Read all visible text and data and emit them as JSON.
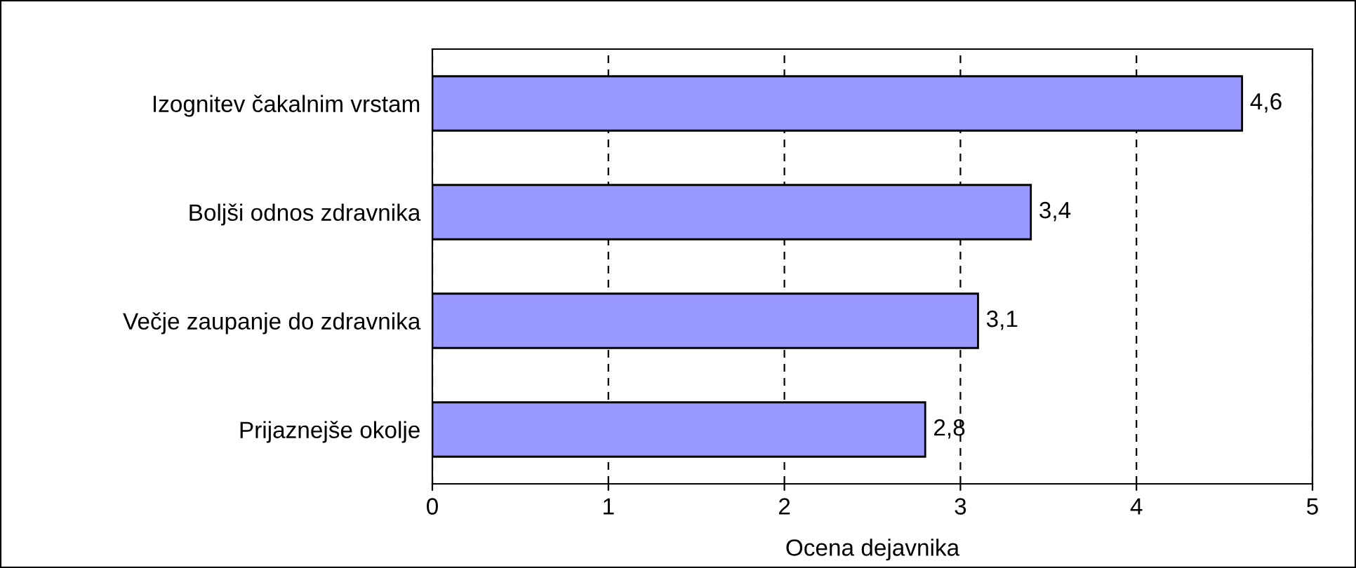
{
  "chart_data": {
    "type": "bar",
    "orientation": "horizontal",
    "xlabel": "Ocena dejavnika",
    "categories": [
      "Izognitev čakalnim vrstam",
      "Boljši odnos zdravnika",
      "Večje zaupanje do zdravnika",
      "Prijaznejše okolje"
    ],
    "values": [
      4.6,
      3.4,
      3.1,
      2.8
    ],
    "value_labels": [
      "4,6",
      "3,4",
      "3,1",
      "2,8"
    ],
    "color": "#9999ff",
    "xlim": [
      0,
      5
    ],
    "xticks": [
      0,
      1,
      2,
      3,
      4,
      5
    ],
    "grid": "x",
    "legend": false
  }
}
